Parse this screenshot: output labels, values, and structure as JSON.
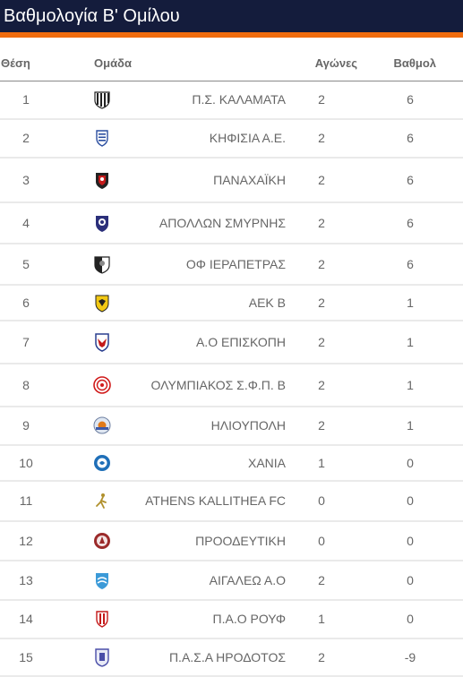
{
  "header": {
    "title": "Βαθμολογία Β' Ομίλου"
  },
  "table": {
    "columns": {
      "position": "Θέση",
      "team": "Ομάδα",
      "played": "Αγώνες",
      "points": "Βαθμολ"
    },
    "rows": [
      {
        "position": "1",
        "team": "Π.Σ. ΚΑΛΑΜΑΤΑ",
        "played": "2",
        "points": "6",
        "logo": "stripes-crest-icon"
      },
      {
        "position": "2",
        "team": "ΚΗΦΙΣΙΑ Α.Ε.",
        "played": "2",
        "points": "6",
        "logo": "blue-shield-crest-icon"
      },
      {
        "position": "3",
        "team": "ΠΑΝΑΧΑΪΚΗ",
        "played": "2",
        "points": "6",
        "logo": "red-black-shield-crest-icon"
      },
      {
        "position": "4",
        "team": "ΑΠΟΛΛΩΝ ΣΜΥΡΝΗΣ",
        "played": "2",
        "points": "6",
        "logo": "navy-shield-crest-icon"
      },
      {
        "position": "5",
        "team": "ΟΦ ΙΕΡΑΠΕΤΡΑΣ",
        "played": "2",
        "points": "6",
        "logo": "black-white-crest-icon"
      },
      {
        "position": "6",
        "team": "ΑΕΚ Β",
        "played": "2",
        "points": "1",
        "logo": "yellow-eagle-crest-icon"
      },
      {
        "position": "7",
        "team": "Α.Ο ΕΠΙΣΚΟΠΗ",
        "played": "2",
        "points": "1",
        "logo": "red-blue-crest-icon"
      },
      {
        "position": "8",
        "team": "ΟΛΥΜΠΙΑΚΟΣ Σ.Φ.Π. Β",
        "played": "2",
        "points": "1",
        "logo": "red-laurel-crest-icon"
      },
      {
        "position": "9",
        "team": "ΗΛΙΟΥΠΟΛΗ",
        "played": "2",
        "points": "1",
        "logo": "sun-crest-icon"
      },
      {
        "position": "10",
        "team": "ΧΑΝΙΑ",
        "played": "1",
        "points": "0",
        "logo": "blue-round-crest-icon"
      },
      {
        "position": "11",
        "team": "ATHENS KALLITHEA FC",
        "played": "0",
        "points": "0",
        "logo": "gold-figure-crest-icon"
      },
      {
        "position": "12",
        "team": "ΠΡΟΟΔΕΥΤΙΚΗ",
        "played": "0",
        "points": "0",
        "logo": "maroon-round-crest-icon"
      },
      {
        "position": "13",
        "team": "ΑΙΓΑΛΕΩ Α.Ο",
        "played": "2",
        "points": "0",
        "logo": "lightblue-shield-crest-icon"
      },
      {
        "position": "14",
        "team": "Π.Α.Ο ΡΟΥΦ",
        "played": "1",
        "points": "0",
        "logo": "red-white-stripes-crest-icon"
      },
      {
        "position": "15",
        "team": "Π.Α.Σ.Α ΗΡΟΔΟΤΟΣ",
        "played": "2",
        "points": "-9",
        "logo": "blue-purple-crest-icon"
      }
    ]
  },
  "colors": {
    "title_bg": "#141c3c",
    "accent": "#f06c0e",
    "row_border": "#eaeaea"
  }
}
